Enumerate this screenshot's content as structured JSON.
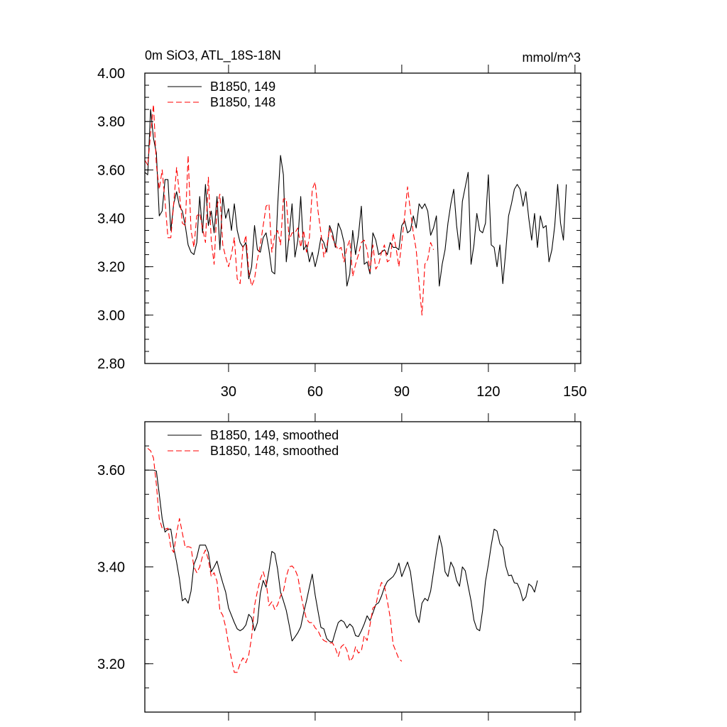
{
  "chart_data": [
    {
      "type": "line",
      "title": "0m SiO3, ATL_18S-18N",
      "units": "mmol/m^3",
      "xlim": [
        1,
        152
      ],
      "ylim": [
        2.8,
        4.0
      ],
      "xticks": [
        30,
        60,
        90,
        120,
        150
      ],
      "yticks": [
        2.8,
        3.0,
        3.2,
        3.4,
        3.6,
        3.8,
        4.0
      ],
      "ytick_labels": [
        "2.80",
        "3.00",
        "3.20",
        "3.40",
        "3.60",
        "3.80",
        "4.00"
      ],
      "xtick_labels": [
        "30",
        "60",
        "90",
        "120",
        "150"
      ],
      "legend_placement": "top-left",
      "series": [
        {
          "name": "B1850, 149",
          "color": "#000000",
          "dash": "solid",
          "x_start": 1,
          "values": [
            3.59,
            3.58,
            3.85,
            3.73,
            3.67,
            3.41,
            3.43,
            3.56,
            3.56,
            3.35,
            3.46,
            3.51,
            3.45,
            3.43,
            3.37,
            3.29,
            3.26,
            3.25,
            3.3,
            3.49,
            3.34,
            3.54,
            3.37,
            3.43,
            3.34,
            3.49,
            3.27,
            3.49,
            3.4,
            3.44,
            3.35,
            3.46,
            3.35,
            3.3,
            3.28,
            3.3,
            3.15,
            3.2,
            3.37,
            3.27,
            3.26,
            3.32,
            3.34,
            3.27,
            3.18,
            3.17,
            3.45,
            3.66,
            3.58,
            3.22,
            3.33,
            3.46,
            3.24,
            3.31,
            3.49,
            3.27,
            3.29,
            3.22,
            3.26,
            3.2,
            3.25,
            3.32,
            3.3,
            3.26,
            3.37,
            3.34,
            3.28,
            3.38,
            3.35,
            3.3,
            3.12,
            3.17,
            3.35,
            3.25,
            3.33,
            3.45,
            3.21,
            3.22,
            3.17,
            3.34,
            3.31,
            3.25,
            3.26,
            3.27,
            3.25,
            3.3,
            3.28,
            3.28,
            3.27,
            3.37,
            3.39,
            3.34,
            3.35,
            3.41,
            3.36,
            3.46,
            3.44,
            3.46,
            3.43,
            3.33,
            3.36,
            3.41,
            3.12,
            3.21,
            3.27,
            3.38,
            3.46,
            3.52,
            3.37,
            3.27,
            3.47,
            3.53,
            3.59,
            3.21,
            3.29,
            3.42,
            3.35,
            3.34,
            3.38,
            3.58,
            3.29,
            3.28,
            3.2,
            3.29,
            3.13,
            3.26,
            3.41,
            3.46,
            3.52,
            3.54,
            3.52,
            3.45,
            3.51,
            3.4,
            3.31,
            3.42,
            3.28,
            3.41,
            3.36,
            3.37,
            3.22,
            3.27,
            3.37,
            3.54,
            3.38,
            3.31,
            3.54
          ]
        },
        {
          "name": "B1850, 148",
          "color": "#ff0000",
          "dash": "dashed",
          "x_start": 1,
          "values": [
            3.64,
            3.62,
            3.75,
            3.87,
            3.62,
            3.52,
            3.6,
            3.47,
            3.32,
            3.32,
            3.46,
            3.61,
            3.5,
            3.38,
            3.37,
            3.66,
            3.35,
            3.28,
            3.41,
            3.42,
            3.36,
            3.3,
            3.57,
            3.31,
            3.21,
            3.45,
            3.5,
            3.29,
            3.24,
            3.2,
            3.25,
            3.32,
            3.15,
            3.13,
            3.28,
            3.33,
            3.18,
            3.12,
            3.15,
            3.23,
            3.29,
            3.37,
            3.45,
            3.46,
            3.26,
            3.33,
            3.35,
            3.29,
            3.48,
            3.48,
            3.31,
            3.34,
            3.34,
            3.36,
            3.28,
            3.35,
            3.26,
            3.32,
            3.52,
            3.55,
            3.43,
            3.34,
            3.24,
            3.28,
            3.36,
            3.32,
            3.29,
            3.27,
            3.28,
            3.22,
            3.28,
            3.31,
            3.16,
            3.21,
            3.25,
            3.3,
            3.31,
            3.27,
            3.18,
            3.29,
            3.19,
            3.21,
            3.26,
            3.29,
            3.22,
            3.23,
            3.34,
            3.28,
            3.2,
            3.3,
            3.41,
            3.53,
            3.43,
            3.34,
            3.27,
            3.13,
            3.0,
            3.21,
            3.23,
            3.3,
            3.27
          ]
        }
      ]
    },
    {
      "type": "line",
      "xlim": [
        1,
        152
      ],
      "ylim": [
        3.1,
        3.7
      ],
      "xticks": [
        30,
        60,
        90,
        120,
        150
      ],
      "yticks": [
        3.2,
        3.4,
        3.6
      ],
      "ytick_labels": [
        "3.20",
        "3.40",
        "3.60"
      ],
      "legend_placement": "top-left",
      "series": [
        {
          "name": "B1850, 149, smoothed",
          "color": "#000000",
          "dash": "solid",
          "x_start": 4,
          "values": [
            3.6,
            3.598,
            3.55,
            3.5,
            3.472,
            3.478,
            3.478,
            3.44,
            3.41,
            3.375,
            3.33,
            3.335,
            3.325,
            3.35,
            3.405,
            3.42,
            3.445,
            3.445,
            3.445,
            3.43,
            3.39,
            3.4,
            3.412,
            3.388,
            3.367,
            3.348,
            3.315,
            3.3,
            3.285,
            3.272,
            3.268,
            3.272,
            3.28,
            3.302,
            3.295,
            3.268,
            3.285,
            3.345,
            3.372,
            3.358,
            3.392,
            3.432,
            3.428,
            3.395,
            3.348,
            3.33,
            3.31,
            3.28,
            3.247,
            3.255,
            3.264,
            3.276,
            3.305,
            3.33,
            3.358,
            3.385,
            3.342,
            3.308,
            3.275,
            3.272,
            3.252,
            3.246,
            3.245,
            3.266,
            3.285,
            3.29,
            3.286,
            3.274,
            3.282,
            3.276,
            3.258,
            3.256,
            3.268,
            3.282,
            3.299,
            3.289,
            3.305,
            3.322,
            3.326,
            3.34,
            3.358,
            3.37,
            3.375,
            3.38,
            3.39,
            3.408,
            3.38,
            3.395,
            3.41,
            3.39,
            3.345,
            3.3,
            3.285,
            3.325,
            3.335,
            3.33,
            3.35,
            3.39,
            3.43,
            3.465,
            3.44,
            3.39,
            3.38,
            3.41,
            3.398,
            3.372,
            3.36,
            3.4,
            3.392,
            3.36,
            3.33,
            3.29,
            3.272,
            3.268,
            3.31,
            3.37,
            3.405,
            3.445,
            3.478,
            3.474,
            3.448,
            3.44,
            3.402,
            3.382,
            3.383,
            3.367,
            3.366,
            3.352,
            3.33,
            3.338,
            3.365,
            3.36,
            3.348,
            3.372
          ]
        },
        {
          "name": "B1850, 148, smoothed",
          "color": "#ff0000",
          "dash": "dashed",
          "x_start": 2,
          "values": [
            3.645,
            3.64,
            3.625,
            3.57,
            3.5,
            3.48,
            3.478,
            3.48,
            3.44,
            3.43,
            3.47,
            3.5,
            3.47,
            3.44,
            3.442,
            3.44,
            3.4,
            3.388,
            3.4,
            3.422,
            3.435,
            3.415,
            3.38,
            3.388,
            3.37,
            3.31,
            3.3,
            3.276,
            3.24,
            3.21,
            3.182,
            3.182,
            3.2,
            3.212,
            3.202,
            3.218,
            3.255,
            3.32,
            3.35,
            3.375,
            3.39,
            3.37,
            3.32,
            3.328,
            3.312,
            3.322,
            3.34,
            3.35,
            3.38,
            3.4,
            3.402,
            3.395,
            3.38,
            3.345,
            3.315,
            3.292,
            3.285,
            3.285,
            3.274,
            3.268,
            3.255,
            3.248,
            3.245,
            3.243,
            3.243,
            3.232,
            3.215,
            3.235,
            3.24,
            3.228,
            3.205,
            3.212,
            3.235,
            3.222,
            3.226,
            3.258,
            3.248,
            3.28,
            3.315,
            3.32,
            3.35,
            3.368,
            3.36,
            3.33,
            3.295,
            3.24,
            3.225,
            3.21,
            3.205
          ]
        }
      ]
    }
  ]
}
